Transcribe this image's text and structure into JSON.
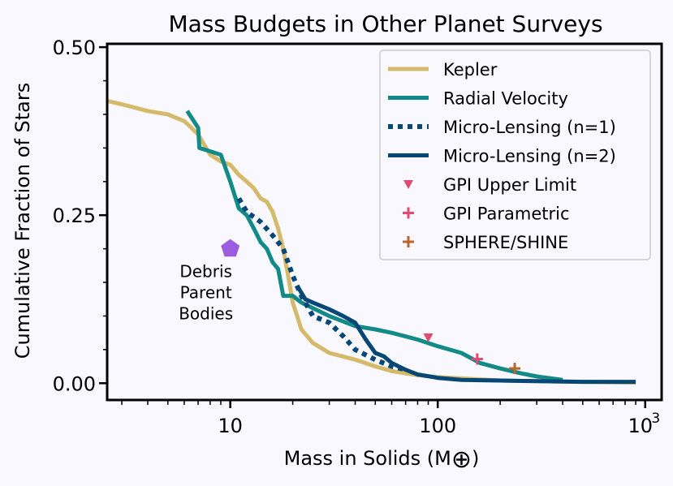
{
  "chart_data": {
    "type": "line",
    "title": "Mass Budgets in Other Planet Surveys",
    "xlabel": "Mass in Solids (M",
    "xlabel_symbol": "⊕",
    "xlabel_close": ")",
    "ylabel": "Cumulative Fraction of Stars",
    "xscale": "log",
    "xlim": [
      2.55,
      1200
    ],
    "ylim": [
      -0.025,
      0.505
    ],
    "x_ticks": [
      {
        "value": 10,
        "label": "10"
      },
      {
        "value": 100,
        "label": "100"
      },
      {
        "value": 1000,
        "label": "10",
        "sup": "3"
      }
    ],
    "y_ticks": [
      {
        "value": 0.0,
        "label": "0.00"
      },
      {
        "value": 0.25,
        "label": "0.25"
      },
      {
        "value": 0.5,
        "label": "0.50"
      }
    ],
    "series": [
      {
        "name": "Kepler",
        "color": "#d4ba6a",
        "style": "solid",
        "x": [
          2.55,
          3,
          4,
          5,
          6,
          6.5,
          7,
          8,
          9,
          10,
          11,
          12,
          13,
          14,
          15,
          16,
          17,
          18,
          19,
          20,
          21,
          22,
          25,
          30,
          40,
          50,
          60,
          80,
          100,
          150,
          200,
          300,
          500,
          900
        ],
        "y": [
          0.42,
          0.415,
          0.405,
          0.4,
          0.39,
          0.38,
          0.37,
          0.34,
          0.33,
          0.325,
          0.31,
          0.3,
          0.29,
          0.275,
          0.27,
          0.255,
          0.23,
          0.2,
          0.16,
          0.12,
          0.1,
          0.08,
          0.06,
          0.045,
          0.035,
          0.025,
          0.018,
          0.012,
          0.009,
          0.006,
          0.004,
          0.003,
          0.002,
          0.001
        ]
      },
      {
        "name": "Radial Velocity",
        "color": "#128a87",
        "style": "solid",
        "x": [
          6.2,
          7,
          7.1,
          8,
          9,
          10,
          11,
          12,
          13,
          14,
          15,
          16,
          17,
          18,
          20,
          22,
          30,
          40,
          50,
          60,
          80,
          100,
          130,
          160,
          200,
          250,
          300,
          400
        ],
        "y": [
          0.405,
          0.38,
          0.35,
          0.345,
          0.34,
          0.3,
          0.26,
          0.25,
          0.23,
          0.21,
          0.2,
          0.18,
          0.17,
          0.13,
          0.13,
          0.12,
          0.1,
          0.085,
          0.08,
          0.075,
          0.065,
          0.055,
          0.045,
          0.03,
          0.022,
          0.015,
          0.01,
          0.005
        ]
      },
      {
        "name": "Micro-Lensing (n=1)",
        "color": "#064776",
        "style": "dotted",
        "x": [
          11,
          12,
          14,
          16,
          18,
          20,
          22,
          25,
          30,
          35,
          40,
          50,
          60,
          70
        ],
        "y": [
          0.275,
          0.255,
          0.24,
          0.22,
          0.2,
          0.16,
          0.13,
          0.1,
          0.09,
          0.07,
          0.05,
          0.035,
          0.025,
          0.02
        ]
      },
      {
        "name": "Micro-Lensing (n=2)",
        "color": "#064776",
        "style": "solid",
        "x": [
          21,
          23,
          25,
          30,
          35,
          40,
          45,
          50,
          55,
          60,
          70,
          80,
          100,
          130,
          200,
          300,
          500,
          900
        ],
        "y": [
          0.145,
          0.125,
          0.12,
          0.11,
          0.1,
          0.09,
          0.065,
          0.045,
          0.04,
          0.03,
          0.02,
          0.013,
          0.008,
          0.005,
          0.004,
          0.003,
          0.002,
          0.002
        ]
      }
    ],
    "points": [
      {
        "name": "GPI Upper Limit",
        "x": 90,
        "y": 0.068,
        "marker": "triangle-down",
        "color": "#e24a72"
      },
      {
        "name": "GPI Parametric",
        "x": 155,
        "y": 0.036,
        "marker": "plus",
        "color": "#e24a72"
      },
      {
        "name": "SPHERE/SHINE",
        "x": 235,
        "y": 0.022,
        "marker": "plus",
        "color": "#b8652e"
      }
    ],
    "annotation": {
      "lines": [
        "Debris",
        "Parent",
        "Bodies"
      ],
      "x": 10,
      "y": 0.2,
      "color": "#9b5ce0",
      "marker": "pentagon"
    },
    "legend": {
      "placement": "top-right",
      "entries": [
        "Kepler",
        "Radial Velocity",
        "Micro-Lensing (n=1)",
        "Micro-Lensing (n=2)",
        "GPI Upper Limit",
        "GPI Parametric",
        "SPHERE/SHINE"
      ]
    }
  }
}
